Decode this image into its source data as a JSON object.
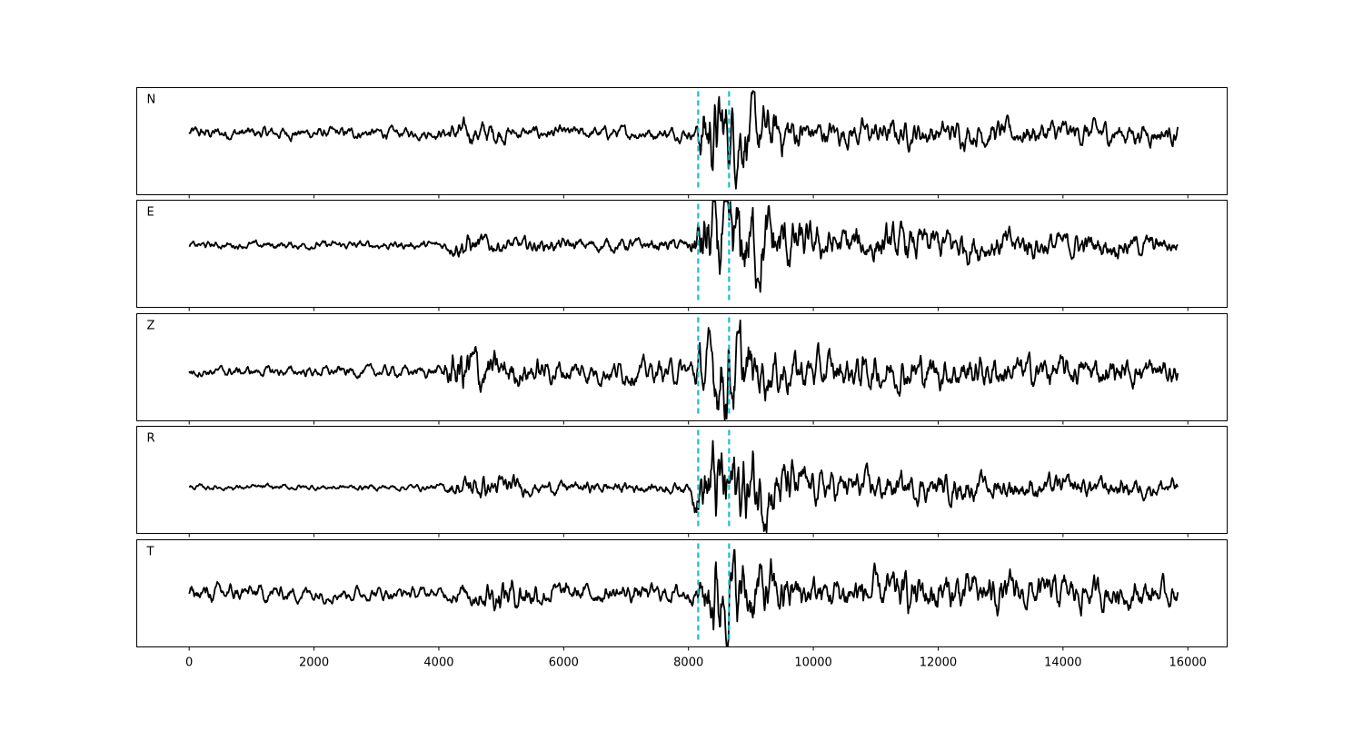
{
  "chart_data": {
    "type": "line",
    "title": "",
    "xlabel": "",
    "ylabel": "",
    "xlim": [
      -840,
      16630
    ],
    "ylim": [
      -1,
      1
    ],
    "x_ticks": [
      0,
      2000,
      4000,
      6000,
      8000,
      10000,
      12000,
      14000,
      16000
    ],
    "x_tick_labels": [
      "0",
      "2000",
      "4000",
      "6000",
      "8000",
      "10000",
      "12000",
      "14000",
      "16000"
    ],
    "x_range_data": [
      0,
      15840
    ],
    "grid": false,
    "line_color": "#000000",
    "marker_color": "#17becf",
    "vertical_markers": [
      {
        "x": 8155,
        "style": "dashed"
      },
      {
        "x": 8650,
        "style": "dashed"
      }
    ],
    "panels": [
      {
        "label": "N",
        "baseline": 0.15,
        "envelope": [
          [
            0,
            0.12
          ],
          [
            4000,
            0.1
          ],
          [
            4300,
            0.22
          ],
          [
            5000,
            0.2
          ],
          [
            5200,
            0.12
          ],
          [
            8100,
            0.12
          ],
          [
            8250,
            0.85
          ],
          [
            8700,
            0.85
          ],
          [
            9000,
            0.6
          ],
          [
            10000,
            0.25
          ],
          [
            13000,
            0.25
          ],
          [
            15840,
            0.2
          ]
        ]
      },
      {
        "label": "E",
        "baseline": 0.16,
        "envelope": [
          [
            0,
            0.06
          ],
          [
            4000,
            0.07
          ],
          [
            4400,
            0.22
          ],
          [
            5000,
            0.12
          ],
          [
            8000,
            0.1
          ],
          [
            8300,
            0.85
          ],
          [
            9000,
            0.75
          ],
          [
            10000,
            0.3
          ],
          [
            12000,
            0.3
          ],
          [
            15840,
            0.15
          ]
        ]
      },
      {
        "label": "Z",
        "baseline": -0.08,
        "envelope": [
          [
            0,
            0.08
          ],
          [
            4000,
            0.1
          ],
          [
            4400,
            0.55
          ],
          [
            5000,
            0.28
          ],
          [
            6000,
            0.2
          ],
          [
            8000,
            0.2
          ],
          [
            8650,
            0.95
          ],
          [
            9000,
            0.5
          ],
          [
            9500,
            0.35
          ],
          [
            15840,
            0.22
          ]
        ]
      },
      {
        "label": "R",
        "baseline": -0.14,
        "envelope": [
          [
            0,
            0.05
          ],
          [
            4000,
            0.06
          ],
          [
            4500,
            0.25
          ],
          [
            5100,
            0.22
          ],
          [
            5500,
            0.12
          ],
          [
            8000,
            0.1
          ],
          [
            8300,
            0.9
          ],
          [
            9000,
            0.8
          ],
          [
            10000,
            0.3
          ],
          [
            15840,
            0.17
          ]
        ]
      },
      {
        "label": "T",
        "baseline": 0.0,
        "envelope": [
          [
            0,
            0.16
          ],
          [
            500,
            0.16
          ],
          [
            4000,
            0.1
          ],
          [
            5000,
            0.32
          ],
          [
            6000,
            0.18
          ],
          [
            8100,
            0.15
          ],
          [
            8400,
            0.9
          ],
          [
            9000,
            0.65
          ],
          [
            10000,
            0.3
          ],
          [
            11500,
            0.38
          ],
          [
            13000,
            0.35
          ],
          [
            15840,
            0.22
          ]
        ]
      }
    ]
  }
}
